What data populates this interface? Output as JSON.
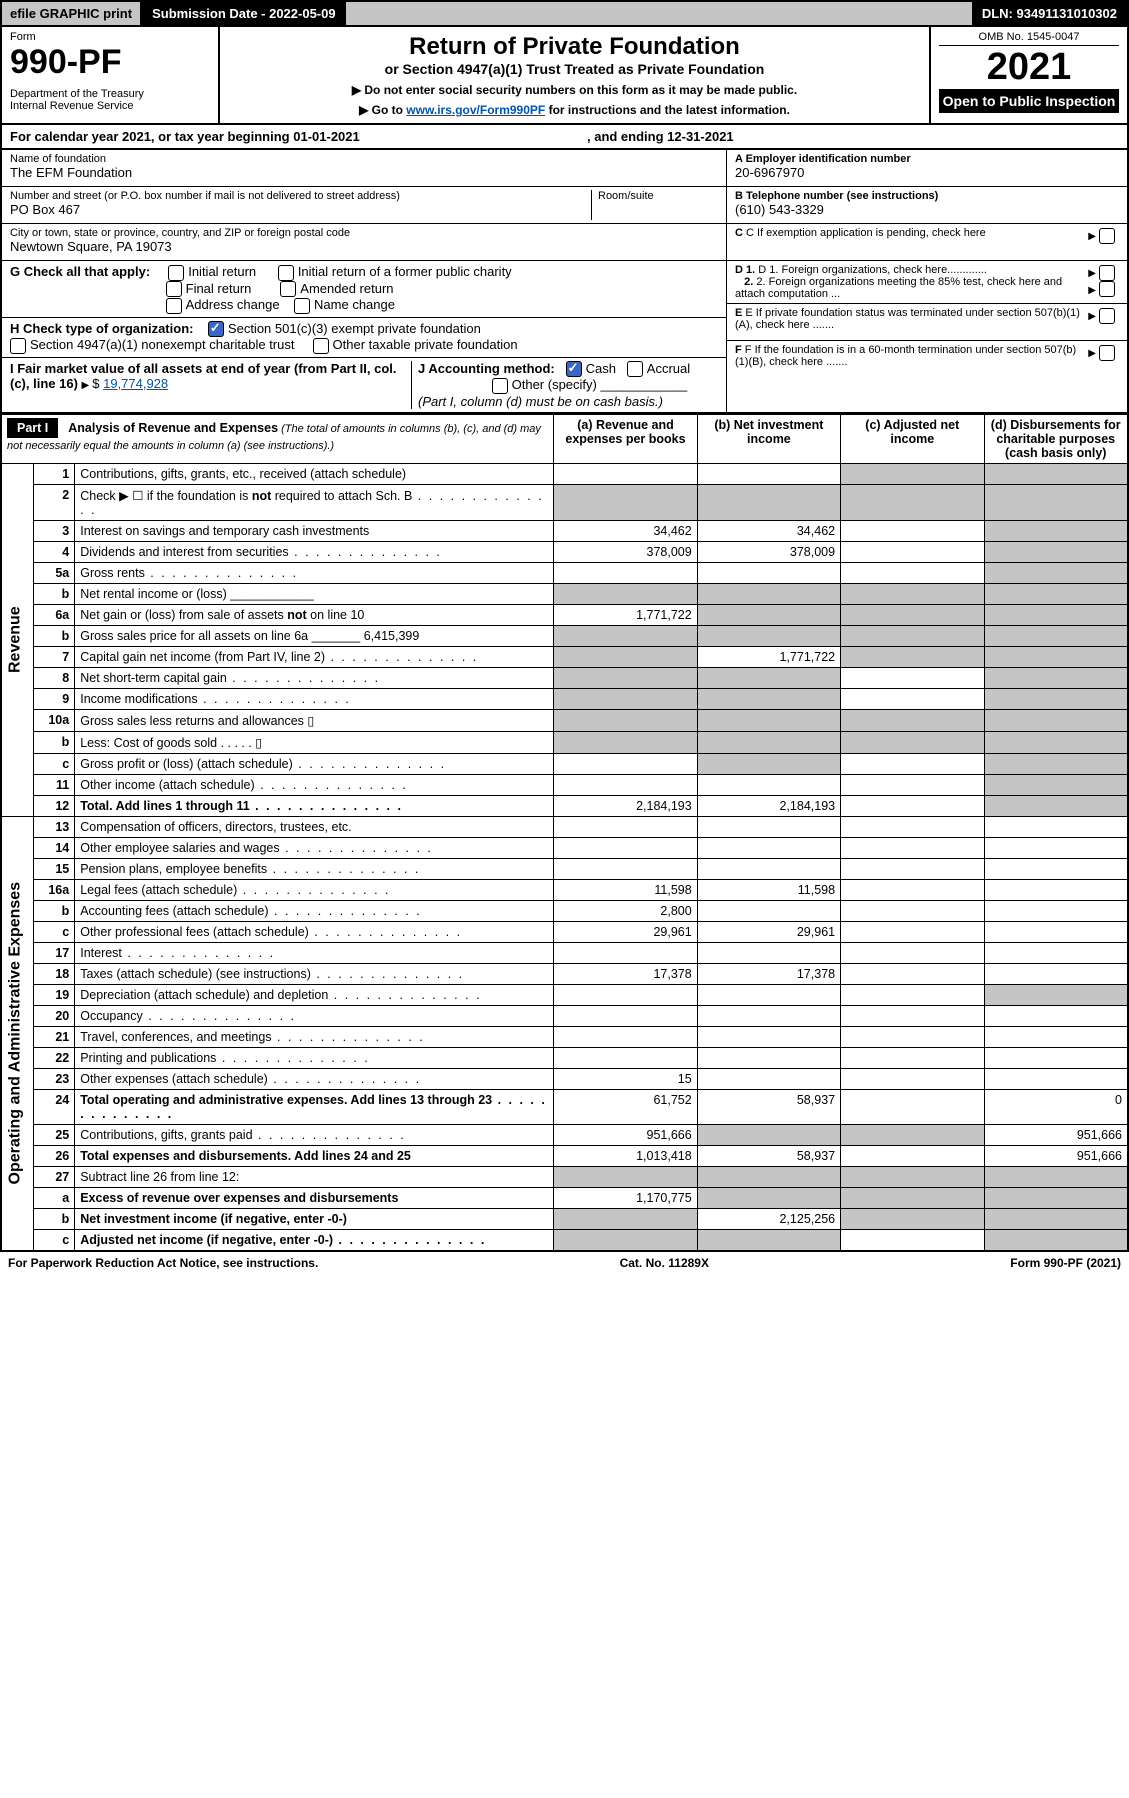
{
  "topbar": {
    "efile": "efile GRAPHIC print",
    "sub_label": "Submission Date - 2022-05-09",
    "dln": "DLN: 93491131010302"
  },
  "header": {
    "form_label": "Form",
    "form_num": "990-PF",
    "dept": "Department of the Treasury\nInternal Revenue Service",
    "title": "Return of Private Foundation",
    "subtitle": "or Section 4947(a)(1) Trust Treated as Private Foundation",
    "note1": "▶ Do not enter social security numbers on this form as it may be made public.",
    "note2_pre": "▶ Go to ",
    "note2_link": "www.irs.gov/Form990PF",
    "note2_post": " for instructions and the latest information.",
    "omb": "OMB No. 1545-0047",
    "year": "2021",
    "open": "Open to Public Inspection"
  },
  "calendar": {
    "text_pre": "For calendar year 2021, or tax year beginning ",
    "begin": "01-01-2021",
    "mid": " , and ending ",
    "end": "12-31-2021"
  },
  "info": {
    "name_label": "Name of foundation",
    "name": "The EFM Foundation",
    "addr_label": "Number and street (or P.O. box number if mail is not delivered to street address)",
    "addr": "PO Box 467",
    "room_label": "Room/suite",
    "city_label": "City or town, state or province, country, and ZIP or foreign postal code",
    "city": "Newtown Square, PA  19073",
    "ein_label": "A Employer identification number",
    "ein": "20-6967970",
    "tel_label": "B Telephone number (see instructions)",
    "tel": "(610) 543-3329",
    "c_label": "C If exemption application is pending, check here",
    "d1_label": "D 1. Foreign organizations, check here.............",
    "d2_label": "2. Foreign organizations meeting the 85% test, check here and attach computation ...",
    "e_label": "E If private foundation status was terminated under section 507(b)(1)(A), check here .......",
    "f_label": "F If the foundation is in a 60-month termination under section 507(b)(1)(B), check here ......."
  },
  "g": {
    "label": "G Check all that apply:",
    "initial": "Initial return",
    "final": "Final return",
    "address": "Address change",
    "initial_former": "Initial return of a former public charity",
    "amended": "Amended return",
    "name_change": "Name change"
  },
  "h": {
    "label": "H Check type of organization:",
    "opt1": "Section 501(c)(3) exempt private foundation",
    "opt2": "Section 4947(a)(1) nonexempt charitable trust",
    "opt3": "Other taxable private foundation"
  },
  "i": {
    "label": "I Fair market value of all assets at end of year (from Part II, col. (c), line 16)",
    "value": "19,774,928"
  },
  "j": {
    "label": "J Accounting method:",
    "cash": "Cash",
    "accrual": "Accrual",
    "other": "Other (specify)",
    "note": "(Part I, column (d) must be on cash basis.)"
  },
  "part1": {
    "label": "Part I",
    "title": "Analysis of Revenue and Expenses",
    "title_note": " (The total of amounts in columns (b), (c), and (d) may not necessarily equal the amounts in column (a) (see instructions).)",
    "col_a": "(a) Revenue and expenses per books",
    "col_b": "(b) Net investment income",
    "col_c": "(c) Adjusted net income",
    "col_d": "(d) Disbursements for charitable purposes (cash basis only)"
  },
  "sections": {
    "revenue": "Revenue",
    "expenses": "Operating and Administrative Expenses"
  },
  "rows": [
    {
      "n": "1",
      "desc": "Contributions, gifts, grants, etc., received (attach schedule)",
      "a": "",
      "b": "",
      "c": "s",
      "d": "s"
    },
    {
      "n": "2",
      "desc": "Check ▶ ☐ if the foundation is not required to attach Sch. B",
      "a": "s",
      "b": "s",
      "c": "s",
      "d": "s",
      "dots": true
    },
    {
      "n": "3",
      "desc": "Interest on savings and temporary cash investments",
      "a": "34,462",
      "b": "34,462",
      "c": "",
      "d": "s"
    },
    {
      "n": "4",
      "desc": "Dividends and interest from securities",
      "a": "378,009",
      "b": "378,009",
      "c": "",
      "d": "s",
      "dots": true
    },
    {
      "n": "5a",
      "desc": "Gross rents",
      "a": "",
      "b": "",
      "c": "",
      "d": "s",
      "dots": true
    },
    {
      "n": "b",
      "desc": "Net rental income or (loss)   ____________",
      "a": "s",
      "b": "s",
      "c": "s",
      "d": "s"
    },
    {
      "n": "6a",
      "desc": "Net gain or (loss) from sale of assets not on line 10",
      "a": "1,771,722",
      "b": "s",
      "c": "s",
      "d": "s"
    },
    {
      "n": "b",
      "desc": "Gross sales price for all assets on line 6a _______ 6,415,399",
      "a": "s",
      "b": "s",
      "c": "s",
      "d": "s"
    },
    {
      "n": "7",
      "desc": "Capital gain net income (from Part IV, line 2)",
      "a": "s",
      "b": "1,771,722",
      "c": "s",
      "d": "s",
      "dots": true
    },
    {
      "n": "8",
      "desc": "Net short-term capital gain",
      "a": "s",
      "b": "s",
      "c": "",
      "d": "s",
      "dots": true
    },
    {
      "n": "9",
      "desc": "Income modifications",
      "a": "s",
      "b": "s",
      "c": "",
      "d": "s",
      "dots": true
    },
    {
      "n": "10a",
      "desc": "Gross sales less returns and allowances  ▯",
      "a": "s",
      "b": "s",
      "c": "s",
      "d": "s"
    },
    {
      "n": "b",
      "desc": "Less: Cost of goods sold     .  .  .  .  .    ▯",
      "a": "s",
      "b": "s",
      "c": "s",
      "d": "s"
    },
    {
      "n": "c",
      "desc": "Gross profit or (loss) (attach schedule)",
      "a": "",
      "b": "s",
      "c": "",
      "d": "s",
      "dots": true
    },
    {
      "n": "11",
      "desc": "Other income (attach schedule)",
      "a": "",
      "b": "",
      "c": "",
      "d": "s",
      "dots": true
    },
    {
      "n": "12",
      "desc": "Total. Add lines 1 through 11",
      "a": "2,184,193",
      "b": "2,184,193",
      "c": "",
      "d": "s",
      "bold": true,
      "dots": true
    }
  ],
  "exp_rows": [
    {
      "n": "13",
      "desc": "Compensation of officers, directors, trustees, etc.",
      "a": "",
      "b": "",
      "c": "",
      "d": ""
    },
    {
      "n": "14",
      "desc": "Other employee salaries and wages",
      "a": "",
      "b": "",
      "c": "",
      "d": "",
      "dots": true
    },
    {
      "n": "15",
      "desc": "Pension plans, employee benefits",
      "a": "",
      "b": "",
      "c": "",
      "d": "",
      "dots": true
    },
    {
      "n": "16a",
      "desc": "Legal fees (attach schedule)",
      "a": "11,598",
      "b": "11,598",
      "c": "",
      "d": "",
      "dots": true
    },
    {
      "n": "b",
      "desc": "Accounting fees (attach schedule)",
      "a": "2,800",
      "b": "",
      "c": "",
      "d": "",
      "dots": true
    },
    {
      "n": "c",
      "desc": "Other professional fees (attach schedule)",
      "a": "29,961",
      "b": "29,961",
      "c": "",
      "d": "",
      "dots": true
    },
    {
      "n": "17",
      "desc": "Interest",
      "a": "",
      "b": "",
      "c": "",
      "d": "",
      "dots": true
    },
    {
      "n": "18",
      "desc": "Taxes (attach schedule) (see instructions)",
      "a": "17,378",
      "b": "17,378",
      "c": "",
      "d": "",
      "dots": true
    },
    {
      "n": "19",
      "desc": "Depreciation (attach schedule) and depletion",
      "a": "",
      "b": "",
      "c": "",
      "d": "s",
      "dots": true
    },
    {
      "n": "20",
      "desc": "Occupancy",
      "a": "",
      "b": "",
      "c": "",
      "d": "",
      "dots": true
    },
    {
      "n": "21",
      "desc": "Travel, conferences, and meetings",
      "a": "",
      "b": "",
      "c": "",
      "d": "",
      "dots": true
    },
    {
      "n": "22",
      "desc": "Printing and publications",
      "a": "",
      "b": "",
      "c": "",
      "d": "",
      "dots": true
    },
    {
      "n": "23",
      "desc": "Other expenses (attach schedule)",
      "a": "15",
      "b": "",
      "c": "",
      "d": "",
      "dots": true
    },
    {
      "n": "24",
      "desc": "Total operating and administrative expenses. Add lines 13 through 23",
      "a": "61,752",
      "b": "58,937",
      "c": "",
      "d": "0",
      "bold": true,
      "dots": true
    },
    {
      "n": "25",
      "desc": "Contributions, gifts, grants paid",
      "a": "951,666",
      "b": "s",
      "c": "s",
      "d": "951,666",
      "dots": true
    },
    {
      "n": "26",
      "desc": "Total expenses and disbursements. Add lines 24 and 25",
      "a": "1,013,418",
      "b": "58,937",
      "c": "",
      "d": "951,666",
      "bold": true
    },
    {
      "n": "27",
      "desc": "Subtract line 26 from line 12:",
      "a": "s",
      "b": "s",
      "c": "s",
      "d": "s"
    },
    {
      "n": "a",
      "desc": "Excess of revenue over expenses and disbursements",
      "a": "1,170,775",
      "b": "s",
      "c": "s",
      "d": "s",
      "bold": true
    },
    {
      "n": "b",
      "desc": "Net investment income (if negative, enter -0-)",
      "a": "s",
      "b": "2,125,256",
      "c": "s",
      "d": "s",
      "bold": true
    },
    {
      "n": "c",
      "desc": "Adjusted net income (if negative, enter -0-)",
      "a": "s",
      "b": "s",
      "c": "",
      "d": "s",
      "bold": true,
      "dots": true
    }
  ],
  "footer": {
    "left": "For Paperwork Reduction Act Notice, see instructions.",
    "mid": "Cat. No. 11289X",
    "right": "Form 990-PF (2021)"
  }
}
